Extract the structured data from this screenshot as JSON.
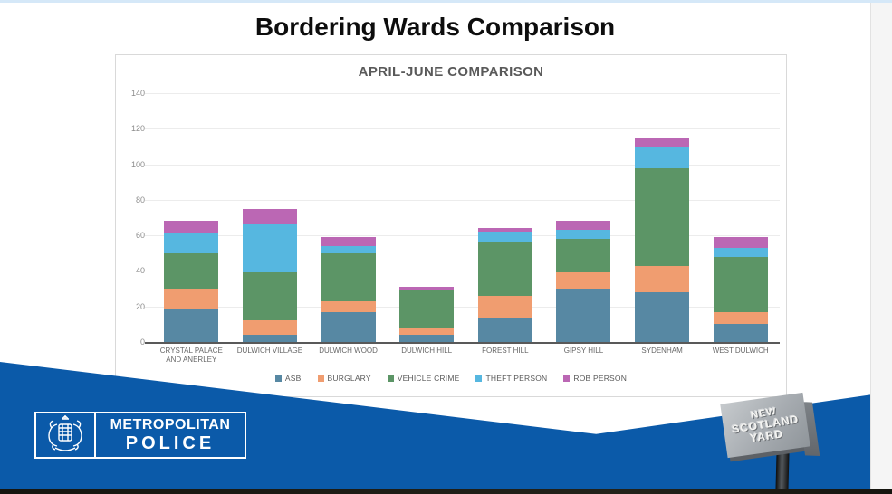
{
  "slide": {
    "title": "Bordering Wards Comparison"
  },
  "chart_data": {
    "type": "bar",
    "stacked": true,
    "title": "APRIL-JUNE COMPARISON",
    "categories": [
      "CRYSTAL PALACE AND ANERLEY",
      "DULWICH VILLAGE",
      "DULWICH WOOD",
      "DULWICH HILL",
      "FOREST HILL",
      "GIPSY HILL",
      "SYDENHAM",
      "WEST DULWICH"
    ],
    "series": [
      {
        "name": "ASB",
        "color": "#5788a3",
        "values": [
          19,
          4,
          17,
          4,
          13,
          30,
          28,
          10
        ]
      },
      {
        "name": "BURGLARY",
        "color": "#f09d70",
        "values": [
          11,
          8,
          6,
          4,
          13,
          9,
          15,
          7
        ]
      },
      {
        "name": "VEHICLE CRIME",
        "color": "#5c9566",
        "values": [
          20,
          27,
          27,
          21,
          30,
          19,
          55,
          31
        ]
      },
      {
        "name": "THEFT PERSON",
        "color": "#56b7e0",
        "values": [
          11,
          27,
          4,
          0,
          6,
          5,
          12,
          5
        ]
      },
      {
        "name": "ROB PERSON",
        "color": "#bb67b4",
        "values": [
          7,
          9,
          5,
          2,
          2,
          5,
          5,
          6
        ]
      }
    ],
    "totals": [
      68,
      75,
      59,
      31,
      64,
      68,
      115,
      59
    ],
    "xlabel": "",
    "ylabel": "",
    "ylim": [
      0,
      140
    ],
    "yticks": [
      0,
      20,
      40,
      60,
      80,
      100,
      120,
      140
    ],
    "grid": true,
    "legend_position": "bottom"
  },
  "footer": {
    "met_logo": {
      "line1": "METROPOLITAN",
      "line2": "POLICE"
    },
    "nsy_sign": {
      "line1": "NEW",
      "line2": "SCOTLAND",
      "line3": "YARD"
    }
  },
  "colors": {
    "band_blue": "#0b5aa9",
    "card_border": "#d9d9d9",
    "gridline": "#ececec",
    "baseline": "#595959",
    "axis_text": "#8c8c8c",
    "label_text": "#666666",
    "title_text": "#595959"
  }
}
